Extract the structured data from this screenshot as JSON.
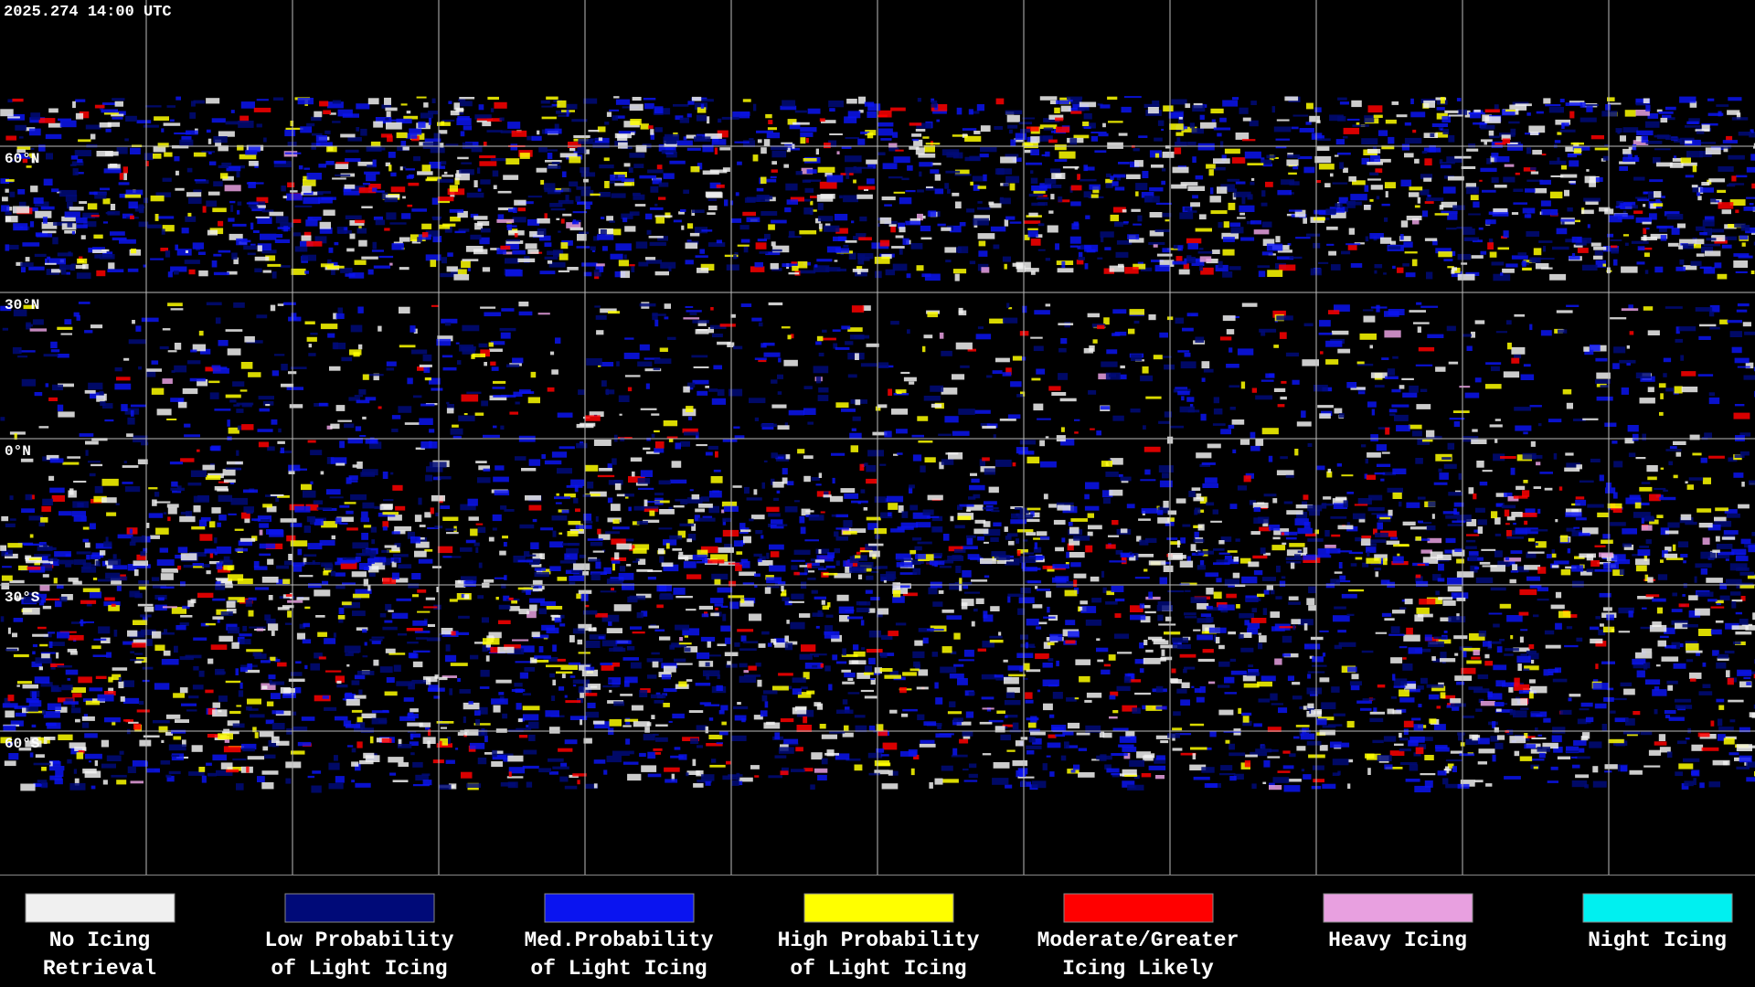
{
  "header": {
    "timestamp": "2025.274 14:00 UTC"
  },
  "latitude_labels": [
    "60°N",
    "30°N",
    "0°N",
    "30°S",
    "60°S"
  ],
  "legend": [
    {
      "lines": [
        "No Icing",
        "Retrieval"
      ],
      "color": "#f0f0f0"
    },
    {
      "lines": [
        "Low Probability",
        "of Light Icing"
      ],
      "color": "#000a78"
    },
    {
      "lines": [
        "Med.Probability",
        "of Light Icing"
      ],
      "color": "#0a14f0"
    },
    {
      "lines": [
        "High Probability",
        "of Light Icing"
      ],
      "color": "#ffff00"
    },
    {
      "lines": [
        "Moderate/Greater",
        "Icing Likely"
      ],
      "color": "#ff0000"
    },
    {
      "lines": [
        "Heavy Icing"
      ],
      "color": "#e8a0e0"
    },
    {
      "lines": [
        "Night Icing"
      ],
      "color": "#00f0f0"
    }
  ]
}
